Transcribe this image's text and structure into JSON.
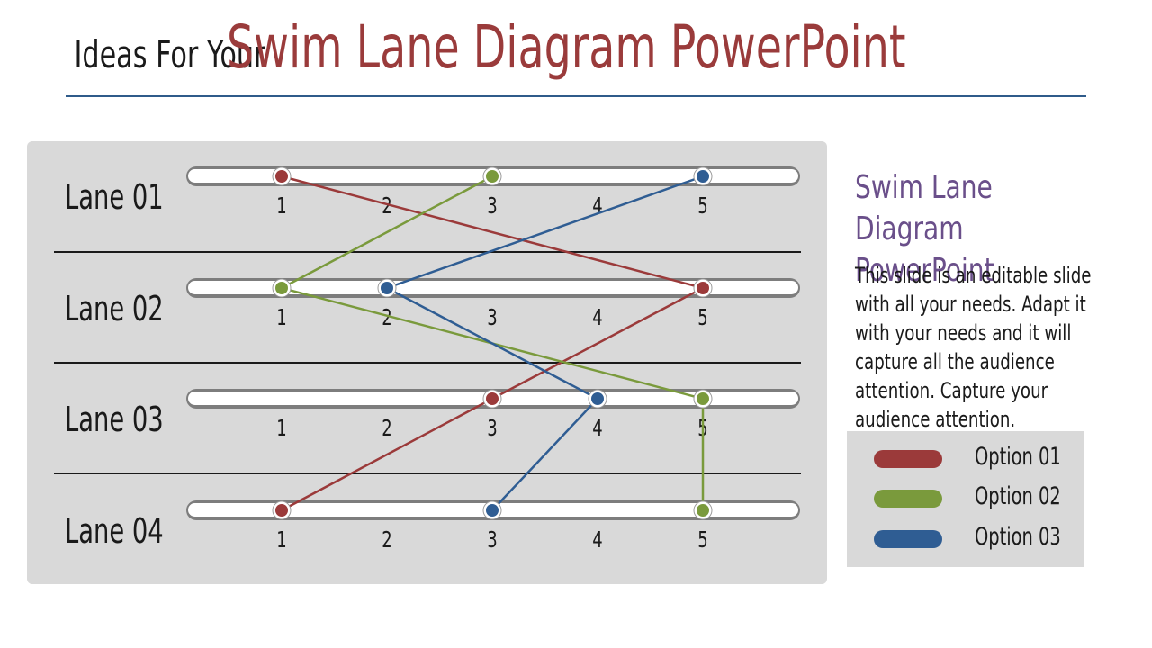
{
  "header": {
    "title_prefix": "Ideas For Your",
    "title_main": "Swim Lane Diagram PowerPoint"
  },
  "diagram": {
    "lanes": [
      {
        "label": "Lane 01"
      },
      {
        "label": "Lane 02"
      },
      {
        "label": "Lane 03"
      },
      {
        "label": "Lane 04"
      }
    ],
    "steps": [
      "1",
      "2",
      "3",
      "4",
      "5"
    ],
    "options": [
      {
        "name": "Option 01",
        "color": "#9b3a3a",
        "points": [
          {
            "lane": 1,
            "step": 1
          },
          {
            "lane": 2,
            "step": 5
          },
          {
            "lane": 3,
            "step": 3
          },
          {
            "lane": 4,
            "step": 1
          }
        ]
      },
      {
        "name": "Option 02",
        "color": "#7a9a3c",
        "points": [
          {
            "lane": 1,
            "step": 3
          },
          {
            "lane": 2,
            "step": 1
          },
          {
            "lane": 3,
            "step": 5
          },
          {
            "lane": 4,
            "step": 5
          }
        ]
      },
      {
        "name": "Option 03",
        "color": "#2f5d93",
        "points": [
          {
            "lane": 1,
            "step": 5
          },
          {
            "lane": 2,
            "step": 2
          },
          {
            "lane": 3,
            "step": 4
          },
          {
            "lane": 4,
            "step": 3
          }
        ]
      }
    ]
  },
  "side": {
    "title": "Swim Lane Diagram\nPowerPoint",
    "body": "This slide is an editable slide with all your needs. Adapt it with your needs and it will capture all the audience attention.  Capture your audience attention."
  },
  "legend": {
    "items": [
      {
        "label": "Option 01",
        "color": "#9b3a3a"
      },
      {
        "label": "Option 02",
        "color": "#7a9a3c"
      },
      {
        "label": "Option 03",
        "color": "#2f5d93"
      }
    ]
  }
}
